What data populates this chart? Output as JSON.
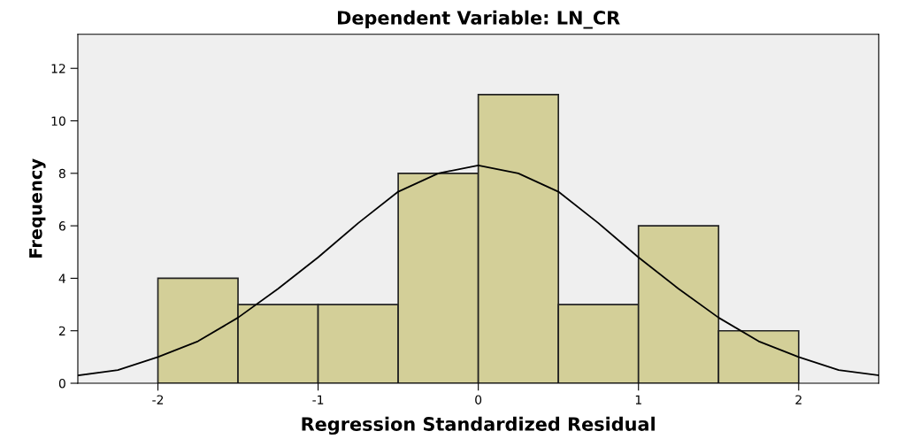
{
  "chart_data": {
    "type": "histogram",
    "title": "Dependent Variable: LN_CR",
    "xlabel": "Regression Standardized Residual",
    "ylabel": "Frequency",
    "bins": [
      -2,
      -1.5,
      -1,
      -0.5,
      0,
      0.5,
      1,
      1.5,
      2
    ],
    "series": [
      {
        "color": "#d3cf98",
        "values": [
          4,
          3,
          3,
          8,
          11,
          3,
          6,
          2
        ]
      },
      {
        "type": "line",
        "color": "#000000",
        "x": [
          -2.5,
          -2.25,
          -2,
          -1.75,
          -1.5,
          -1.25,
          -1,
          -0.75,
          -0.5,
          -0.25,
          0,
          0.25,
          0.5,
          0.75,
          1,
          1.25,
          1.5,
          1.75,
          2,
          2.25,
          2.5
        ],
        "values": [
          0.3,
          0.5,
          1.0,
          1.6,
          2.5,
          3.6,
          4.8,
          6.1,
          7.3,
          8.0,
          8.3,
          8.0,
          7.3,
          6.1,
          4.8,
          3.6,
          2.5,
          1.6,
          1.0,
          0.5,
          0.3
        ]
      }
    ],
    "xlim": [
      -2.5,
      2.5
    ],
    "ylim": [
      0,
      13.3
    ],
    "xticks": [
      -2,
      -1,
      0,
      1,
      2
    ],
    "yticks": [
      0,
      2,
      4,
      6,
      8,
      10,
      12
    ],
    "grid": false,
    "legend": false
  }
}
